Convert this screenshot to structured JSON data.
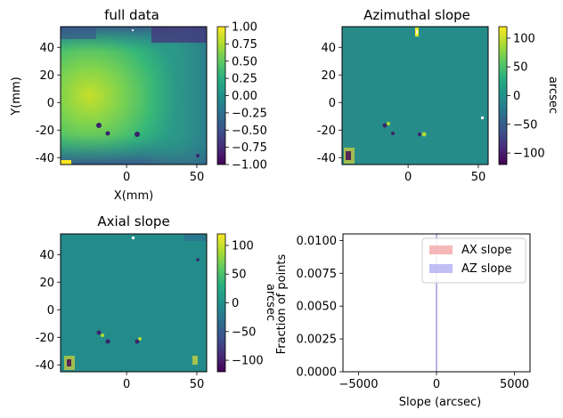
{
  "chart_data": [
    {
      "type": "heatmap",
      "title": "full data",
      "xlabel": "X(mm)",
      "ylabel": "Y(mm)",
      "xlim": [
        -47,
        57
      ],
      "ylim": [
        -45,
        55
      ],
      "xticks": [
        0,
        50
      ],
      "yticks": [
        -40,
        -20,
        0,
        20,
        40
      ],
      "colormap": "viridis",
      "colorbar": {
        "label": "",
        "range": [
          -1.0,
          1.0
        ],
        "ticks": [
          "1.00",
          "0.75",
          "0.50",
          "0.25",
          "0.00",
          "-0.25",
          "-0.50",
          "-0.75",
          "-1.00"
        ]
      }
    },
    {
      "type": "heatmap",
      "title": "Azimuthal slope",
      "xlabel": "",
      "ylabel": "",
      "xlim": [
        -47,
        57
      ],
      "ylim": [
        -45,
        55
      ],
      "xticks": [
        0,
        50
      ],
      "yticks": [
        -40,
        -20,
        0,
        20,
        40
      ],
      "colormap": "viridis",
      "colorbar": {
        "label": "arcsec",
        "range": [
          -120,
          120
        ],
        "ticks": [
          "100",
          "50",
          "0",
          "-50",
          "-100"
        ]
      }
    },
    {
      "type": "heatmap",
      "title": "Axial slope",
      "xlabel": "",
      "ylabel": "",
      "xlim": [
        -47,
        57
      ],
      "ylim": [
        -45,
        55
      ],
      "xticks": [
        0,
        50
      ],
      "yticks": [
        -40,
        -20,
        0,
        20,
        40
      ],
      "colormap": "viridis",
      "colorbar": {
        "label": "arcsec",
        "range": [
          -120,
          120
        ],
        "ticks": [
          "100",
          "50",
          "0",
          "-50",
          "-100"
        ]
      }
    },
    {
      "type": "bar",
      "title": "",
      "xlabel": "Slope (arcsec)",
      "ylabel": "Fraction of points",
      "xlim": [
        -6000,
        6000
      ],
      "ylim": [
        0,
        0.0105
      ],
      "xticks": [
        "-5000",
        "0",
        "5000"
      ],
      "yticks": [
        "0.0000",
        "0.0025",
        "0.0050",
        "0.0075",
        "0.0100"
      ],
      "grid": false,
      "legend_position": "top-right",
      "series": [
        {
          "name": "AX slope",
          "color": "#f4a6a6",
          "bin_center": 0,
          "value": 0.0105
        },
        {
          "name": "AZ slope",
          "color": "#b0b0f4",
          "bin_center": 0,
          "value": 0.0105
        }
      ]
    }
  ]
}
